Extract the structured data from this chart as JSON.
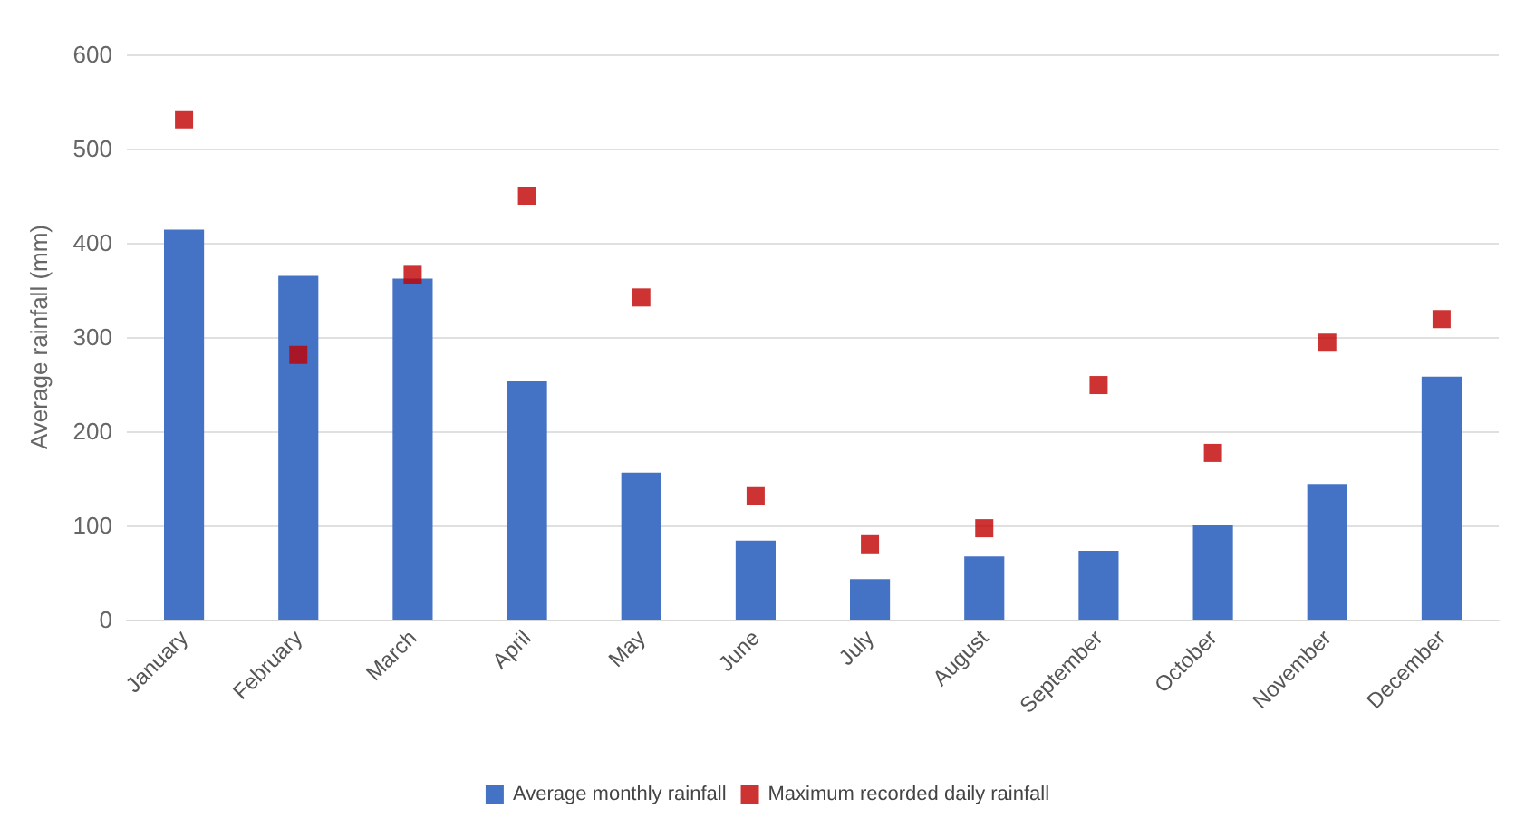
{
  "chart_data": {
    "type": "bar",
    "ylabel": "Average rainfall (mm)",
    "categories": [
      "January",
      "February",
      "March",
      "April",
      "May",
      "June",
      "July",
      "August",
      "September",
      "October",
      "November",
      "December"
    ],
    "series": [
      {
        "name": "Average monthly rainfall",
        "color": "#4472c4",
        "values": [
          414,
          365,
          362,
          253,
          156,
          84,
          43,
          67,
          73,
          100,
          144,
          258
        ]
      },
      {
        "name": "Maximum recorded daily rainfall",
        "type": "scatter",
        "marker": "square",
        "color": "#c00000",
        "values": [
          531,
          281,
          366,
          450,
          342,
          131,
          80,
          97,
          249,
          177,
          294,
          319
        ]
      }
    ],
    "ylim": [
      0,
      600
    ],
    "yticks": [
      0,
      100,
      200,
      300,
      400,
      500,
      600
    ],
    "grid": "y",
    "legend": "bottom"
  }
}
